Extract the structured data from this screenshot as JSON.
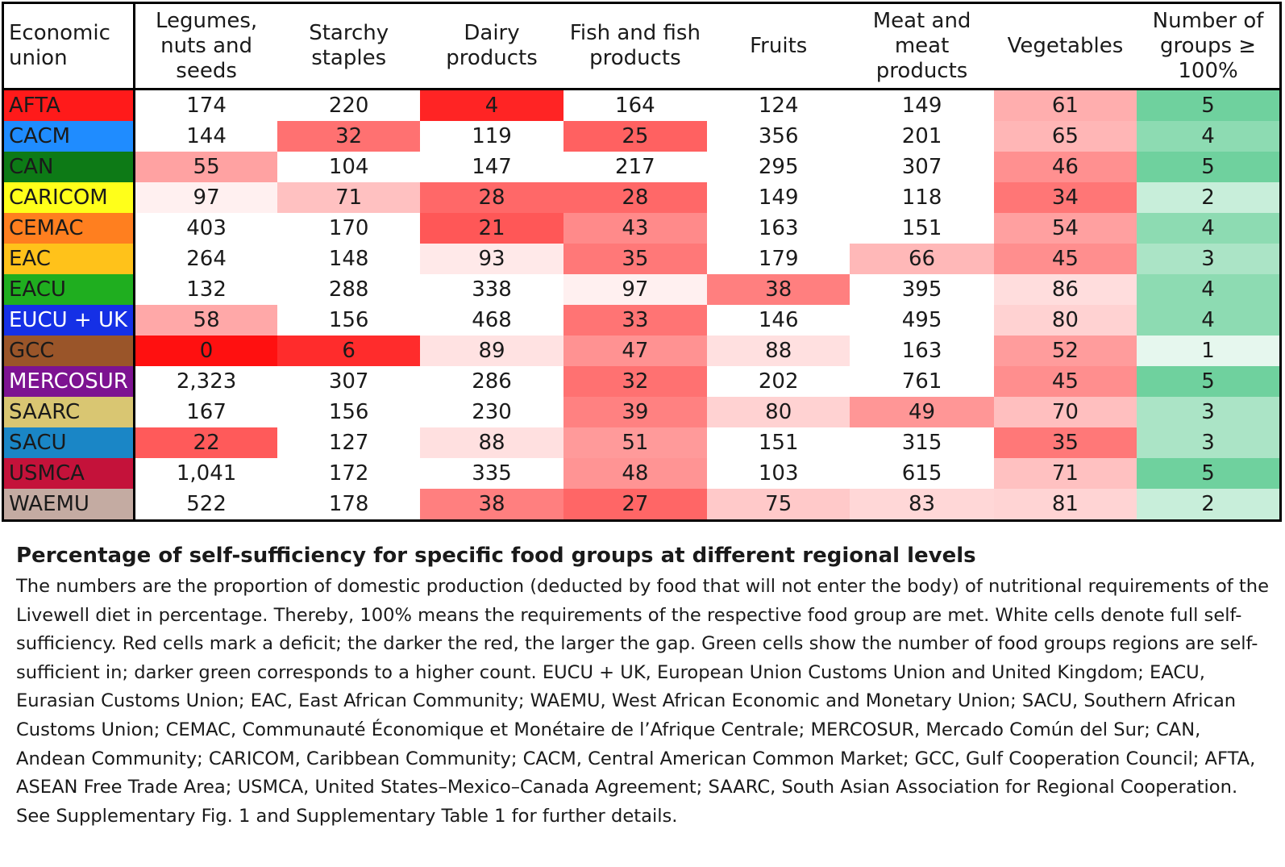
{
  "chart_data": {
    "type": "table",
    "columns": [
      "Economic union",
      "Legumes, nuts and seeds",
      "Starchy staples",
      "Dairy products",
      "Fish and fish products",
      "Fruits",
      "Meat and meat products",
      "Vegetables",
      "Number of groups ≥ 100%"
    ],
    "rows": [
      {
        "union": "AFTA",
        "values": [
          "174",
          "220",
          "4",
          "164",
          "124",
          "149",
          "61",
          "5"
        ]
      },
      {
        "union": "CACM",
        "values": [
          "144",
          "32",
          "119",
          "25",
          "356",
          "201",
          "65",
          "4"
        ]
      },
      {
        "union": "CAN",
        "values": [
          "55",
          "104",
          "147",
          "217",
          "295",
          "307",
          "46",
          "5"
        ]
      },
      {
        "union": "CARICOM",
        "values": [
          "97",
          "71",
          "28",
          "28",
          "149",
          "118",
          "34",
          "2"
        ]
      },
      {
        "union": "CEMAC",
        "values": [
          "403",
          "170",
          "21",
          "43",
          "163",
          "151",
          "54",
          "4"
        ]
      },
      {
        "union": "EAC",
        "values": [
          "264",
          "148",
          "93",
          "35",
          "179",
          "66",
          "45",
          "3"
        ]
      },
      {
        "union": "EACU",
        "values": [
          "132",
          "288",
          "338",
          "97",
          "38",
          "395",
          "86",
          "4"
        ]
      },
      {
        "union": "EUCU + UK",
        "values": [
          "58",
          "156",
          "468",
          "33",
          "146",
          "495",
          "80",
          "4"
        ]
      },
      {
        "union": "GCC",
        "values": [
          "0",
          "6",
          "89",
          "47",
          "88",
          "163",
          "52",
          "1"
        ]
      },
      {
        "union": "MERCOSUR",
        "values": [
          "2,323",
          "307",
          "286",
          "32",
          "202",
          "761",
          "45",
          "5"
        ]
      },
      {
        "union": "SAARC",
        "values": [
          "167",
          "156",
          "230",
          "39",
          "80",
          "49",
          "70",
          "3"
        ]
      },
      {
        "union": "SACU",
        "values": [
          "22",
          "127",
          "88",
          "51",
          "151",
          "315",
          "35",
          "3"
        ]
      },
      {
        "union": "USMCA",
        "values": [
          "1,041",
          "172",
          "335",
          "48",
          "103",
          "615",
          "71",
          "5"
        ]
      },
      {
        "union": "WAEMU",
        "values": [
          "522",
          "178",
          "38",
          "27",
          "75",
          "83",
          "81",
          "2"
        ]
      }
    ]
  },
  "union_colors": {
    "AFTA": "#ff1a1a",
    "CACM": "#1f8cff",
    "CAN": "#0d7a16",
    "CARICOM": "#ffff1a",
    "CEMAC": "#ff7f1f",
    "EAC": "#ffc21a",
    "EACU": "#1fae1f",
    "EUCU + UK": "#1530e6",
    "GCC": "#9a5529",
    "MERCOSUR": "#7d1391",
    "SAARC": "#d9c672",
    "SACU": "#1a86c6",
    "USMCA": "#c4123a",
    "WAEMU": "#c4aba2"
  },
  "union_text_colors": {
    "AFTA": "#1a1a1a",
    "CACM": "#1a1a1a",
    "CAN": "#1a1a1a",
    "CARICOM": "#1a1a1a",
    "CEMAC": "#1a1a1a",
    "EAC": "#1a1a1a",
    "EACU": "#1a1a1a",
    "EUCU + UK": "#ffffff",
    "GCC": "#1a1a1a",
    "MERCOSUR": "#ffffff",
    "SAARC": "#1a1a1a",
    "SACU": "#1a1a1a",
    "USMCA": "#1a1a1a",
    "WAEMU": "#1a1a1a"
  },
  "color_scale": {
    "deficit_dark": "#ff1010",
    "deficit_light": "#fff5f5",
    "surplus": "#ffffff",
    "green_dark": "#6fd19e",
    "green_light": "#e6f7ee"
  },
  "caption": {
    "title": "Percentage of self-sufficiency for specific food groups at different regional levels",
    "body": "The numbers are the proportion of domestic production (deducted by food that will not enter the body) of nutritional requirements of the Livewell diet in percentage. Thereby, 100% means the requirements of the respective food group are met. White cells denote full self-sufficiency. Red cells mark a deficit; the darker the red, the larger the gap. Green cells show the number of food groups regions are self-sufficient in; darker green corresponds to a higher count. EUCU + UK, European Union Customs Union and United Kingdom; EACU, Eurasian Customs Union; EAC, East African Community; WAEMU, West African Economic and Monetary Union; SACU, Southern African Customs Union; CEMAC, Communauté Économique et Monétaire de l’Afrique Centrale; MERCOSUR, Mercado Común del Sur; CAN, Andean Community; CARICOM, Caribbean Community; CACM, Central American Common Market; GCC, Gulf Cooperation Council; AFTA, ASEAN Free Trade Area; USMCA, United States–Mexico–Canada Agreement; SAARC, South Asian Association for Regional Cooperation. See Supplementary Fig. 1 and Supplementary Table 1 for further details."
  }
}
